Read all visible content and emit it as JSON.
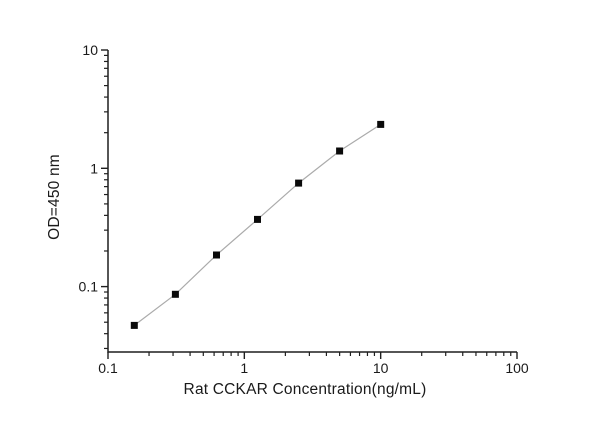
{
  "figure": {
    "background": "#ffffff"
  },
  "chart_data": {
    "type": "line",
    "title": "",
    "xlabel": "Rat CCKAR Concentration(ng/mL)",
    "ylabel": "OD=450 nm",
    "xscale": "log",
    "yscale": "log",
    "xlim": [
      0.1,
      100
    ],
    "ylim": [
      0.028,
      10
    ],
    "grid": false,
    "legend": "none",
    "x": [
      0.156,
      0.312,
      0.625,
      1.25,
      2.5,
      5,
      10
    ],
    "y": [
      0.047,
      0.086,
      0.185,
      0.37,
      0.75,
      1.4,
      2.35
    ],
    "x_major_ticks": [
      0.1,
      1,
      10,
      100
    ],
    "x_tick_labels": [
      "0.1",
      "1",
      "10",
      "100"
    ],
    "y_major_ticks": [
      0.1,
      1,
      10
    ],
    "y_tick_labels": [
      "0.1",
      "1",
      "10"
    ],
    "marker": "square",
    "marker_color": "#0a0a0a",
    "line_color": "#ababab",
    "axis_color": "#1f1f1f",
    "tick_label_color": "#1a1a1a"
  }
}
